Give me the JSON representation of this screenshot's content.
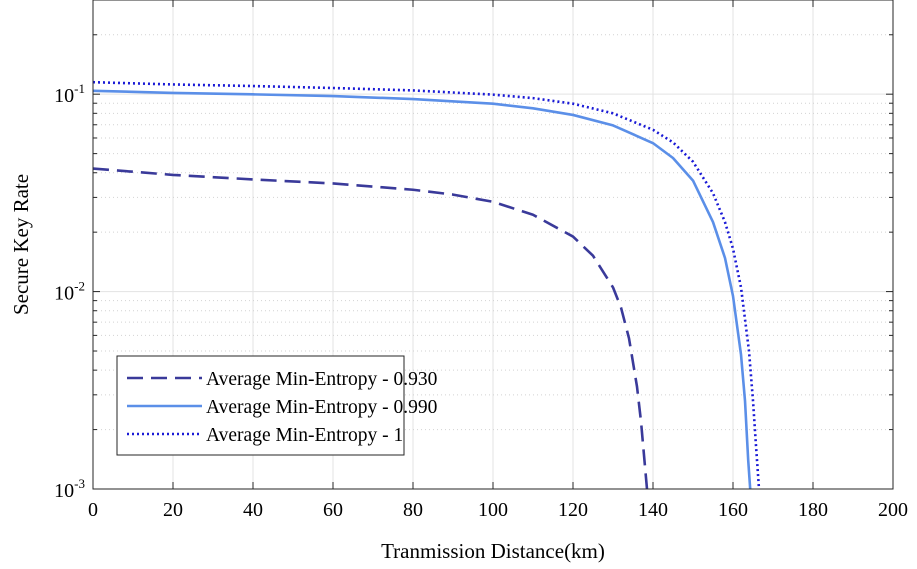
{
  "chart_data": {
    "type": "line",
    "xlabel": "Tranmission Distance(km)",
    "ylabel": "Secure Key Rate",
    "xlim": [
      0,
      200
    ],
    "ylim": [
      0.001,
      0.3
    ],
    "yscale": "log",
    "grid": true,
    "legend_position": "bottom-left",
    "x_ticks": [
      "0",
      "20",
      "40",
      "60",
      "80",
      "100",
      "120",
      "140",
      "160",
      "180",
      "200"
    ],
    "y_ticks": [
      {
        "value": 0.001,
        "base": "10",
        "exp": "-3"
      },
      {
        "value": 0.01,
        "base": "10",
        "exp": "-2"
      },
      {
        "value": 0.1,
        "base": "10",
        "exp": "-1"
      }
    ],
    "series": [
      {
        "name": "Average Min-Entropy - 0.930",
        "style": "dashed",
        "color": "#3a3a9a",
        "x": [
          0,
          20,
          40,
          60,
          80,
          90,
          100,
          110,
          120,
          125,
          130,
          132,
          134,
          136,
          137,
          138,
          138.5
        ],
        "y": [
          0.042,
          0.039,
          0.037,
          0.0353,
          0.0328,
          0.031,
          0.0285,
          0.0245,
          0.019,
          0.0152,
          0.0105,
          0.0083,
          0.0058,
          0.0033,
          0.0022,
          0.0013,
          0.001
        ]
      },
      {
        "name": "Average Min-Entropy - 0.990",
        "style": "solid",
        "color": "#5b8fe8",
        "x": [
          0,
          20,
          40,
          60,
          80,
          100,
          110,
          120,
          130,
          140,
          145,
          150,
          155,
          158,
          160,
          162,
          163,
          163.8,
          164.3
        ],
        "y": [
          0.104,
          0.1015,
          0.0998,
          0.0978,
          0.0945,
          0.0895,
          0.0848,
          0.0785,
          0.0695,
          0.0565,
          0.0475,
          0.0365,
          0.0225,
          0.0148,
          0.0095,
          0.0048,
          0.0028,
          0.0014,
          0.001
        ]
      },
      {
        "name": "Average Min-Entropy - 1",
        "style": "dotted",
        "color": "#1a1ad6",
        "x": [
          0,
          20,
          40,
          60,
          80,
          100,
          110,
          120,
          130,
          140,
          145,
          150,
          155,
          158,
          160,
          162,
          164,
          165,
          165.8,
          166.5
        ],
        "y": [
          0.115,
          0.112,
          0.11,
          0.1075,
          0.1045,
          0.0995,
          0.0955,
          0.0895,
          0.08,
          0.066,
          0.057,
          0.0455,
          0.0315,
          0.0225,
          0.0165,
          0.0105,
          0.005,
          0.0028,
          0.0016,
          0.001
        ]
      }
    ]
  }
}
